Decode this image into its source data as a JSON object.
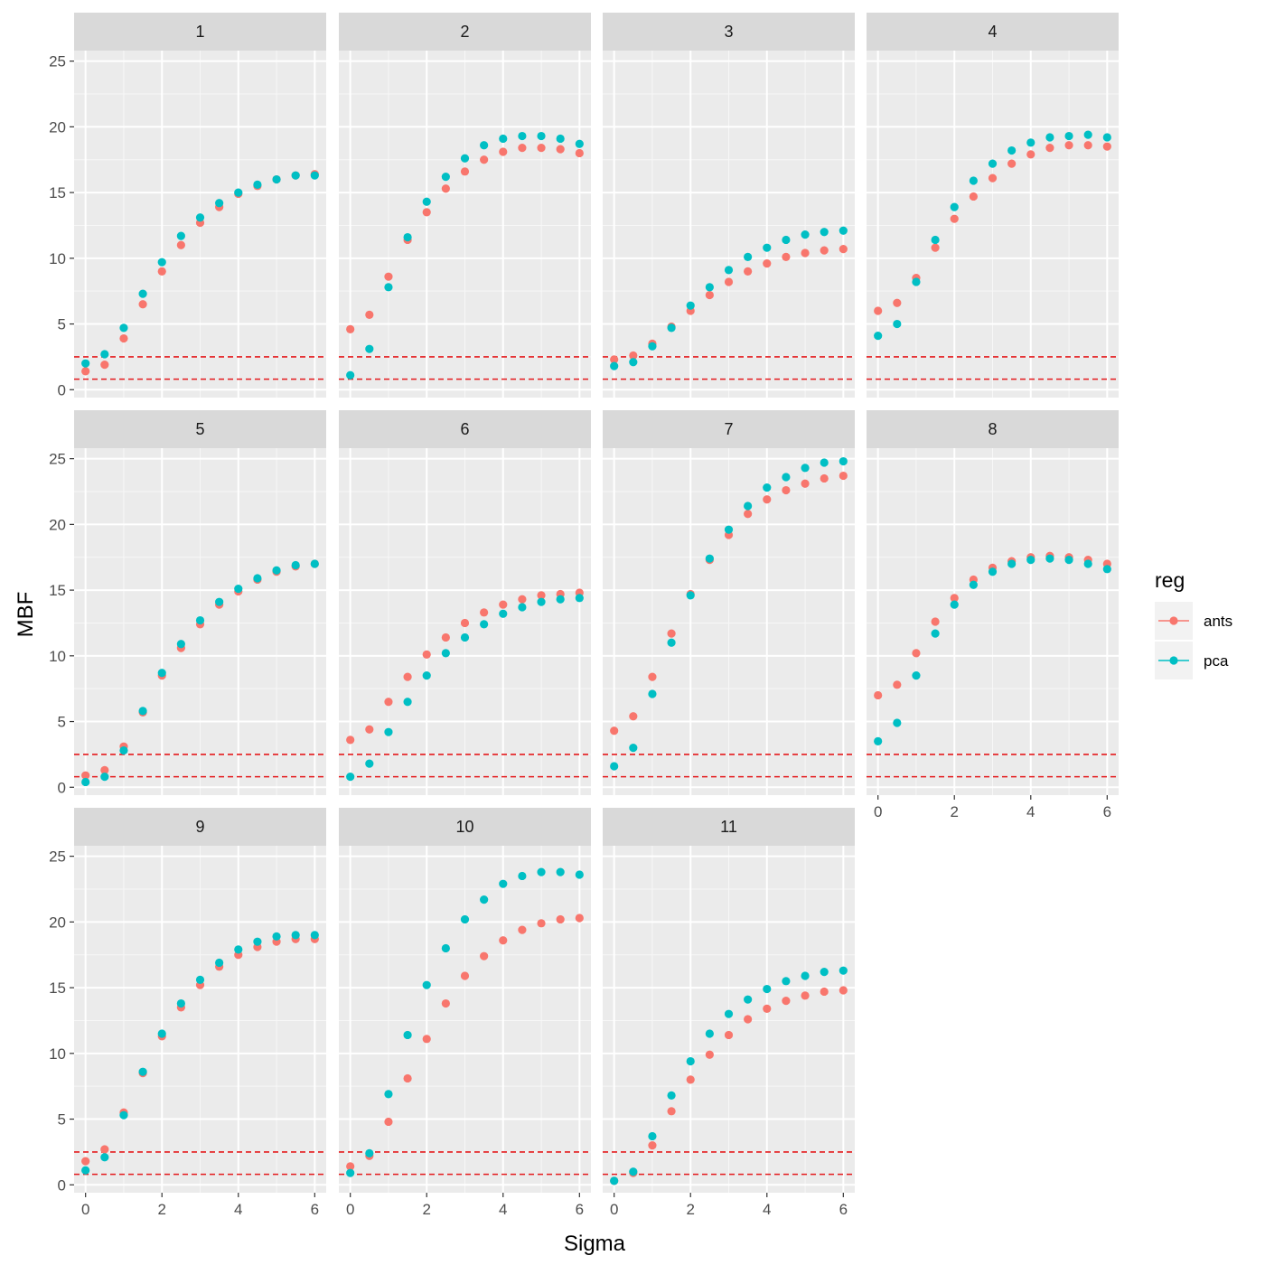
{
  "chart_data": {
    "type": "scatter",
    "facet_by": "panel",
    "xlabel": "Sigma",
    "ylabel": "MBF",
    "xlim": [
      -0.3,
      6.3
    ],
    "ylim": [
      -0.6,
      25.8
    ],
    "xticks": [
      0,
      2,
      4,
      6
    ],
    "yticks": [
      0,
      5,
      10,
      15,
      20,
      25
    ],
    "x": [
      0,
      0.5,
      1,
      1.5,
      2,
      2.5,
      3,
      3.5,
      4,
      4.5,
      5,
      5.5,
      6
    ],
    "reference_lines": [
      2.5,
      0.8
    ],
    "reference_line_color": "#e41a1c",
    "grid": true,
    "legend": {
      "title": "reg",
      "position": "right",
      "entries": [
        {
          "name": "ants",
          "color": "#F8766D"
        },
        {
          "name": "pca",
          "color": "#00BFC4"
        }
      ]
    },
    "panels": [
      {
        "label": "1",
        "series": [
          {
            "name": "ants",
            "values": [
              1.4,
              1.9,
              3.9,
              6.5,
              9.0,
              11.0,
              12.7,
              13.9,
              14.9,
              15.5,
              16.0,
              16.3,
              16.4
            ]
          },
          {
            "name": "pca",
            "values": [
              2.0,
              2.7,
              4.7,
              7.3,
              9.7,
              11.7,
              13.1,
              14.2,
              15.0,
              15.6,
              16.0,
              16.3,
              16.3
            ]
          }
        ]
      },
      {
        "label": "2",
        "series": [
          {
            "name": "ants",
            "values": [
              4.6,
              5.7,
              8.6,
              11.4,
              13.5,
              15.3,
              16.6,
              17.5,
              18.1,
              18.4,
              18.4,
              18.3,
              18.0
            ]
          },
          {
            "name": "pca",
            "values": [
              1.1,
              3.1,
              7.8,
              11.6,
              14.3,
              16.2,
              17.6,
              18.6,
              19.1,
              19.3,
              19.3,
              19.1,
              18.7
            ]
          }
        ]
      },
      {
        "label": "3",
        "series": [
          {
            "name": "ants",
            "values": [
              2.3,
              2.6,
              3.5,
              4.8,
              6.0,
              7.2,
              8.2,
              9.0,
              9.6,
              10.1,
              10.4,
              10.6,
              10.7
            ]
          },
          {
            "name": "pca",
            "values": [
              1.8,
              2.1,
              3.3,
              4.7,
              6.4,
              7.8,
              9.1,
              10.1,
              10.8,
              11.4,
              11.8,
              12.0,
              12.1
            ]
          }
        ]
      },
      {
        "label": "4",
        "series": [
          {
            "name": "ants",
            "values": [
              6.0,
              6.6,
              8.5,
              10.8,
              13.0,
              14.7,
              16.1,
              17.2,
              17.9,
              18.4,
              18.6,
              18.6,
              18.5
            ]
          },
          {
            "name": "pca",
            "values": [
              4.1,
              5.0,
              8.2,
              11.4,
              13.9,
              15.9,
              17.2,
              18.2,
              18.8,
              19.2,
              19.3,
              19.4,
              19.2
            ]
          }
        ]
      },
      {
        "label": "5",
        "series": [
          {
            "name": "ants",
            "values": [
              0.9,
              1.3,
              3.1,
              5.7,
              8.5,
              10.6,
              12.4,
              13.9,
              14.9,
              15.8,
              16.4,
              16.8,
              17.0
            ]
          },
          {
            "name": "pca",
            "values": [
              0.4,
              0.8,
              2.8,
              5.8,
              8.7,
              10.9,
              12.7,
              14.1,
              15.1,
              15.9,
              16.5,
              16.9,
              17.0
            ]
          }
        ]
      },
      {
        "label": "6",
        "series": [
          {
            "name": "ants",
            "values": [
              3.6,
              4.4,
              6.5,
              8.4,
              10.1,
              11.4,
              12.5,
              13.3,
              13.9,
              14.3,
              14.6,
              14.7,
              14.8
            ]
          },
          {
            "name": "pca",
            "values": [
              0.8,
              1.8,
              4.2,
              6.5,
              8.5,
              10.2,
              11.4,
              12.4,
              13.2,
              13.7,
              14.1,
              14.3,
              14.4
            ]
          }
        ]
      },
      {
        "label": "7",
        "series": [
          {
            "name": "ants",
            "values": [
              4.3,
              5.4,
              8.4,
              11.7,
              14.7,
              17.3,
              19.2,
              20.8,
              21.9,
              22.6,
              23.1,
              23.5,
              23.7
            ]
          },
          {
            "name": "pca",
            "values": [
              1.6,
              3.0,
              7.1,
              11.0,
              14.6,
              17.4,
              19.6,
              21.4,
              22.8,
              23.6,
              24.3,
              24.7,
              24.8
            ]
          }
        ]
      },
      {
        "label": "8",
        "series": [
          {
            "name": "ants",
            "values": [
              7.0,
              7.8,
              10.2,
              12.6,
              14.4,
              15.8,
              16.7,
              17.2,
              17.5,
              17.6,
              17.5,
              17.3,
              17.0
            ]
          },
          {
            "name": "pca",
            "values": [
              3.5,
              4.9,
              8.5,
              11.7,
              13.9,
              15.4,
              16.4,
              17.0,
              17.3,
              17.4,
              17.3,
              17.0,
              16.6
            ]
          }
        ]
      },
      {
        "label": "9",
        "series": [
          {
            "name": "ants",
            "values": [
              1.8,
              2.7,
              5.5,
              8.5,
              11.3,
              13.5,
              15.2,
              16.6,
              17.5,
              18.1,
              18.5,
              18.7,
              18.7
            ]
          },
          {
            "name": "pca",
            "values": [
              1.1,
              2.1,
              5.3,
              8.6,
              11.5,
              13.8,
              15.6,
              16.9,
              17.9,
              18.5,
              18.9,
              19.0,
              19.0
            ]
          }
        ]
      },
      {
        "label": "10",
        "series": [
          {
            "name": "ants",
            "values": [
              1.4,
              2.2,
              4.8,
              8.1,
              11.1,
              13.8,
              15.9,
              17.4,
              18.6,
              19.4,
              19.9,
              20.2,
              20.3
            ]
          },
          {
            "name": "pca",
            "values": [
              0.9,
              2.4,
              6.9,
              11.4,
              15.2,
              18.0,
              20.2,
              21.7,
              22.9,
              23.5,
              23.8,
              23.8,
              23.6
            ]
          }
        ]
      },
      {
        "label": "11",
        "series": [
          {
            "name": "ants",
            "values": [
              0.3,
              0.9,
              3.0,
              5.6,
              8.0,
              9.9,
              11.4,
              12.6,
              13.4,
              14.0,
              14.4,
              14.7,
              14.8
            ]
          },
          {
            "name": "pca",
            "values": [
              0.3,
              1.0,
              3.7,
              6.8,
              9.4,
              11.5,
              13.0,
              14.1,
              14.9,
              15.5,
              15.9,
              16.2,
              16.3
            ]
          }
        ]
      }
    ]
  }
}
